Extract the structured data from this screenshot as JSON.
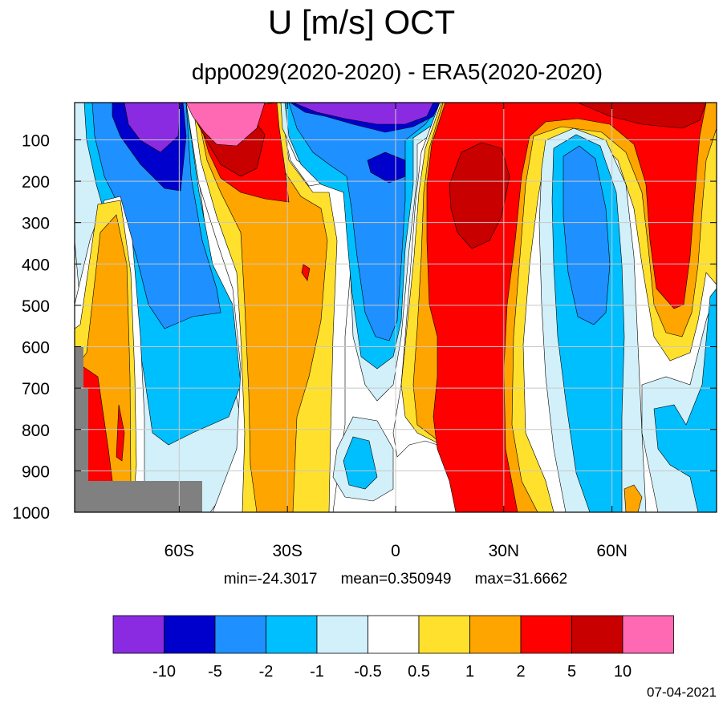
{
  "chart_data": {
    "type": "heatmap",
    "title": "U [m/s] OCT",
    "subtitle": "dpp0029(2020-2020) - ERA5(2020-2020)",
    "x_ticks": [
      "60S",
      "30S",
      "0",
      "30N",
      "60N"
    ],
    "x_tick_values": [
      -60,
      -30,
      0,
      30,
      60
    ],
    "xlim": [
      -89,
      89
    ],
    "y_ticks": [
      "100",
      "200",
      "300",
      "400",
      "500",
      "600",
      "700",
      "800",
      "900",
      "1000"
    ],
    "y_tick_values": [
      100,
      200,
      300,
      400,
      500,
      600,
      700,
      800,
      900,
      1000
    ],
    "ylim": [
      10,
      1000
    ],
    "grid": true,
    "colorbar": {
      "colors": [
        "#8a2be2",
        "#0000cd",
        "#1e90ff",
        "#00bfff",
        "#d2f0fa",
        "#ffffff",
        "#ffe12d",
        "#ffa500",
        "#ff0000",
        "#c80000",
        "#ff69b4"
      ],
      "labels": [
        "-10",
        "-5",
        "-2",
        "-1",
        "-0.5",
        "0.5",
        "1",
        "2",
        "5",
        "10"
      ],
      "levels": [
        -10,
        -5,
        -2,
        -1,
        -0.5,
        0.5,
        1,
        2,
        5,
        10
      ]
    },
    "stats": {
      "min": "min=-24.3017",
      "mean": "mean=0.350949",
      "max": "max=31.6662"
    },
    "date": "07-04-2021"
  }
}
